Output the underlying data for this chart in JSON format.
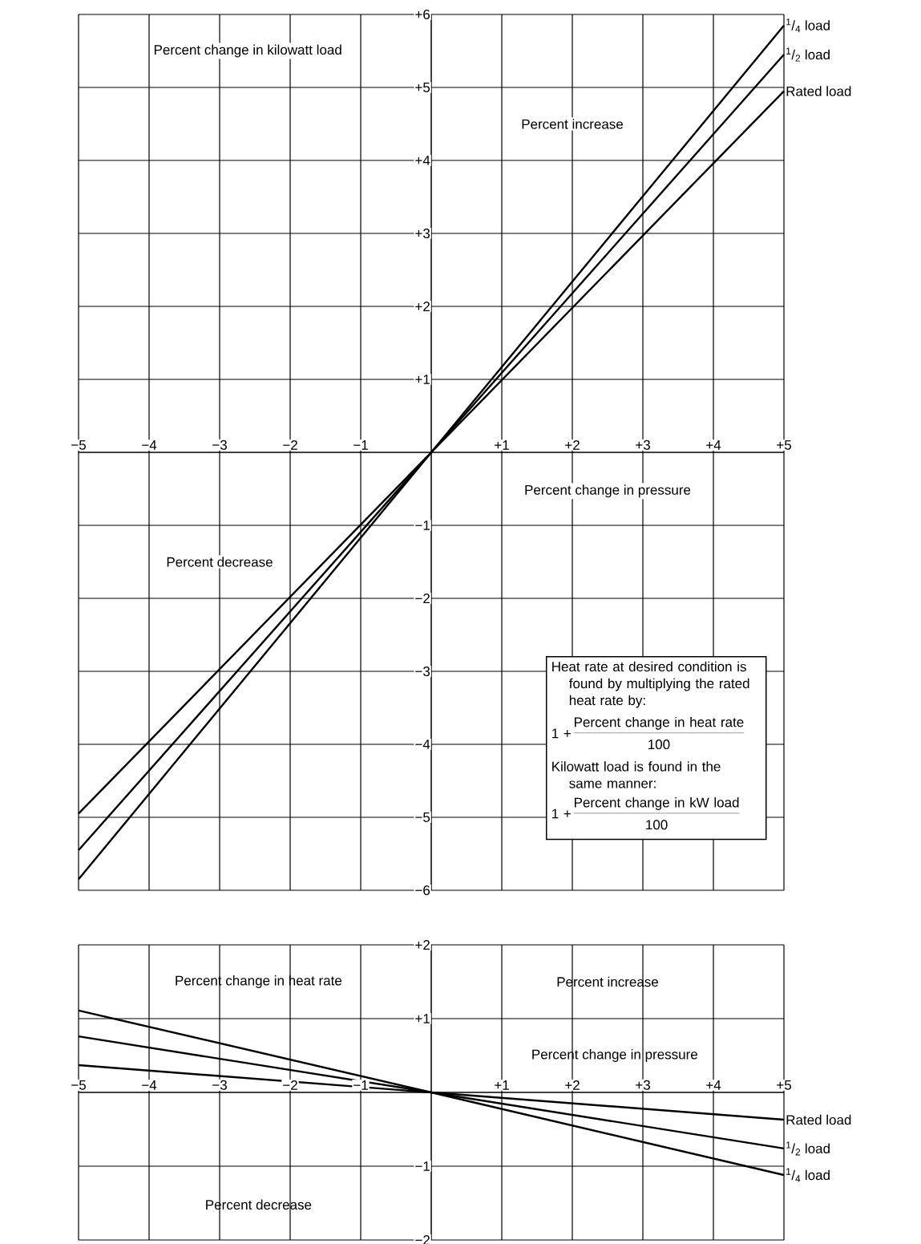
{
  "chart_data": [
    {
      "type": "line",
      "ylabel": "Percent change in kilowatt load",
      "xlabel": "Percent change in pressure",
      "x": [
        -5,
        0,
        5
      ],
      "series": [
        {
          "name": "$^{1}$/$_{4}$ load",
          "color": "#000000",
          "values": [
            -5.85,
            0,
            5.85
          ]
        },
        {
          "name": "$^{1}$/$_{2}$ load",
          "color": "#000000",
          "values": [
            -5.45,
            0,
            5.45
          ]
        },
        {
          "name": "Rated load",
          "color": "#000000",
          "values": [
            -4.95,
            0,
            4.95
          ]
        }
      ],
      "xlim": [
        -5,
        5
      ],
      "ylim": [
        -6,
        6
      ],
      "xticks": [
        {
          "value": -5,
          "label": "−5"
        },
        {
          "value": -4,
          "label": "−4"
        },
        {
          "value": -3,
          "label": "−3"
        },
        {
          "value": -2,
          "label": "−2"
        },
        {
          "value": -1,
          "label": "−1"
        },
        {
          "value": 1,
          "label": "+1"
        },
        {
          "value": 2,
          "label": "+2"
        },
        {
          "value": 3,
          "label": "+3"
        },
        {
          "value": 4,
          "label": "+4"
        },
        {
          "value": 5,
          "label": "+5"
        }
      ],
      "yticks": [
        {
          "value": -6,
          "label": "−6"
        },
        {
          "value": -5,
          "label": "−5"
        },
        {
          "value": -4,
          "label": "−4"
        },
        {
          "value": -3,
          "label": "−3"
        },
        {
          "value": -2,
          "label": "−2"
        },
        {
          "value": -1,
          "label": "−1"
        },
        {
          "value": 1,
          "label": "+1"
        },
        {
          "value": 2,
          "label": "+2"
        },
        {
          "value": 3,
          "label": "+3"
        },
        {
          "value": 4,
          "label": "+4"
        },
        {
          "value": 5,
          "label": "+5"
        },
        {
          "value": 6,
          "label": "+6"
        }
      ],
      "grid": true,
      "marker": "none",
      "line_style": "solid",
      "annotations": [
        "Percent increase",
        "Percent decrease",
        "Heat rate at desired condition is found by multiplying the rated heat rate by:",
        "1 +",
        "Percent change in heat rate",
        "100",
        "Kilowatt load is found in the same manner:",
        "1 +",
        "Percent change in kW load",
        "100"
      ]
    },
    {
      "type": "line",
      "ylabel": "Percent change in heat rate",
      "xlabel": "Percent change in pressure",
      "x": [
        -5,
        0,
        5
      ],
      "series": [
        {
          "name": "Rated load",
          "color": "#000000",
          "values": [
            0.37,
            0,
            -0.37
          ]
        },
        {
          "name": "$^{1}$/$_{2}$ load",
          "color": "#000000",
          "values": [
            0.76,
            0,
            -0.76
          ]
        },
        {
          "name": "$^{1}$/$_{4}$ load",
          "color": "#000000",
          "values": [
            1.11,
            0,
            -1.12
          ]
        }
      ],
      "xlim": [
        -5,
        5
      ],
      "ylim": [
        -2,
        2
      ],
      "xticks": [
        {
          "value": -5,
          "label": "−5"
        },
        {
          "value": -4,
          "label": "−4"
        },
        {
          "value": -3,
          "label": "−3"
        },
        {
          "value": -2,
          "label": "−2"
        },
        {
          "value": -1,
          "label": "−1"
        },
        {
          "value": 1,
          "label": "+1"
        },
        {
          "value": 2,
          "label": "+2"
        },
        {
          "value": 3,
          "label": "+3"
        },
        {
          "value": 4,
          "label": "+4"
        },
        {
          "value": 5,
          "label": "+5"
        }
      ],
      "yticks": [
        {
          "value": -2,
          "label": "−2"
        },
        {
          "value": -1,
          "label": "−1"
        },
        {
          "value": 1,
          "label": "+1"
        },
        {
          "value": 2,
          "label": "+2"
        }
      ],
      "grid": true,
      "marker": "none",
      "line_style": "solid",
      "annotations": [
        "Percent increase",
        "Percent decrease"
      ]
    }
  ]
}
